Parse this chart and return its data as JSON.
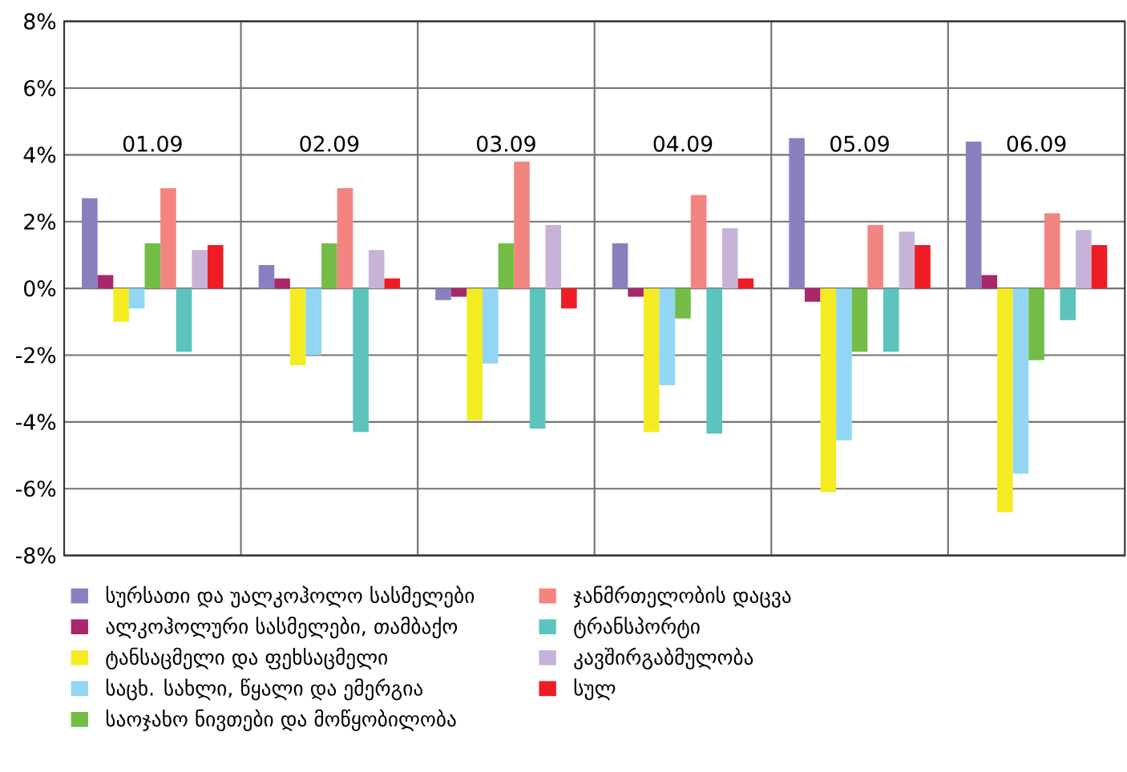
{
  "chart_data": {
    "type": "bar",
    "categories": [
      "01.09",
      "02.09",
      "03.09",
      "04.09",
      "05.09",
      "06.09"
    ],
    "series": [
      {
        "name": "სურსათი და უალკოჰოლო სასმელები",
        "color": "#8880bf",
        "values": [
          2.7,
          0.7,
          -0.35,
          1.35,
          4.5,
          4.4
        ]
      },
      {
        "name": "ალკოჰოლური სასმელები, თამბაქო",
        "color": "#a8286a",
        "values": [
          0.4,
          0.3,
          -0.25,
          -0.25,
          -0.4,
          0.4
        ]
      },
      {
        "name": "ტანსაცმელი და ფეხსაცმელი",
        "color": "#f5eb23",
        "values": [
          -1.0,
          -2.3,
          -3.95,
          -4.3,
          -6.1,
          -6.7
        ]
      },
      {
        "name": "საცხ. სახლი, წყალი და ემერგია",
        "color": "#91d7f5",
        "values": [
          -0.6,
          -2.0,
          -2.25,
          -2.9,
          -4.55,
          -5.55
        ]
      },
      {
        "name": "საოჯახო ნივთები და მოწყობილობა",
        "color": "#73bd46",
        "values": [
          1.35,
          1.35,
          1.35,
          -0.9,
          -1.9,
          -2.15
        ]
      },
      {
        "name": "ჯანმრთელობის დაცვა",
        "color": "#f38580",
        "values": [
          3.0,
          3.0,
          3.8,
          2.8,
          1.9,
          2.25
        ]
      },
      {
        "name": "ტრანსპორტი",
        "color": "#5cc4bc",
        "values": [
          -1.9,
          -4.3,
          -4.2,
          -4.35,
          -1.9,
          -0.95
        ]
      },
      {
        "name": "კავშირგაბმულობა",
        "color": "#c7b3d8",
        "values": [
          1.15,
          1.15,
          1.9,
          1.8,
          1.7,
          1.75
        ]
      },
      {
        "name": "სულ",
        "color": "#ee1c25",
        "values": [
          1.3,
          0.3,
          -0.6,
          0.3,
          1.3,
          1.3
        ]
      }
    ],
    "ylim": [
      -8,
      8
    ],
    "yticks": [
      {
        "value": -8,
        "label": "-8%"
      },
      {
        "value": -6,
        "label": "-6%"
      },
      {
        "value": -4,
        "label": "-4%"
      },
      {
        "value": -2,
        "label": "-2%"
      },
      {
        "value": 0,
        "label": "0%"
      },
      {
        "value": 2,
        "label": "2%"
      },
      {
        "value": 4,
        "label": "4%"
      },
      {
        "value": 6,
        "label": "6%"
      },
      {
        "value": 8,
        "label": "8%"
      }
    ],
    "grid": true,
    "legend": "bottom"
  }
}
